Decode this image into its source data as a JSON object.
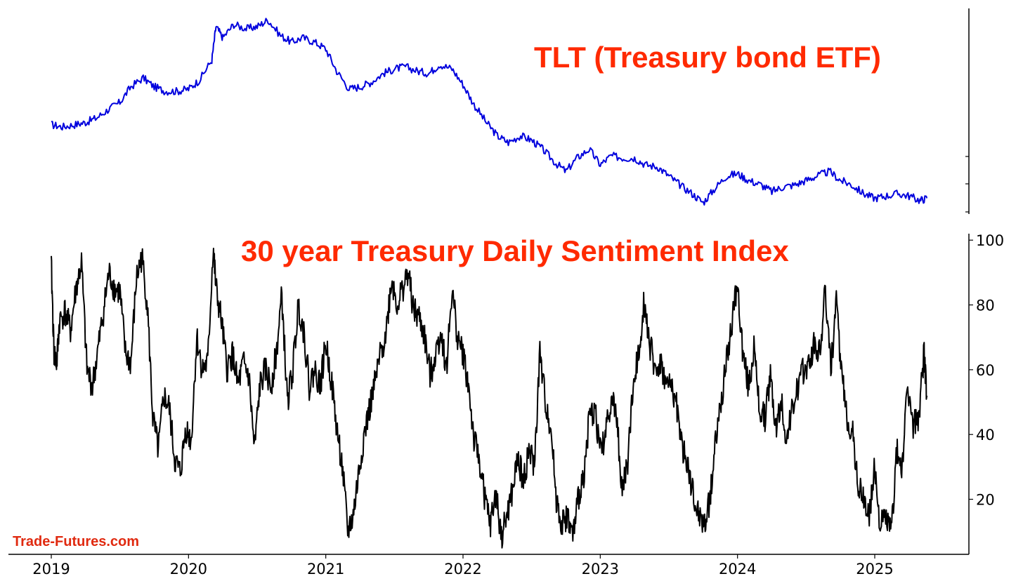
{
  "chart_data": [
    {
      "type": "line",
      "title": "TLT (Treasury bond ETF)",
      "y_axis_side": "right",
      "y_ticks_labeled": false,
      "color": "#0000dd",
      "series": [
        {
          "x": [
            2019.0,
            2019.08,
            2019.17,
            2019.25,
            2019.33,
            2019.42,
            2019.5,
            2019.58,
            2019.67,
            2019.75,
            2019.83,
            2019.92,
            2020.0,
            2020.08,
            2020.17,
            2020.2,
            2020.25,
            2020.33,
            2020.42,
            2020.5,
            2020.58,
            2020.67,
            2020.75,
            2020.83,
            2020.92,
            2021.0,
            2021.08,
            2021.17,
            2021.25,
            2021.33,
            2021.42,
            2021.5,
            2021.58,
            2021.67,
            2021.75,
            2021.83,
            2021.92,
            2022.0,
            2022.08,
            2022.17,
            2022.25,
            2022.33,
            2022.42,
            2022.5,
            2022.58,
            2022.67,
            2022.75,
            2022.83,
            2022.92,
            2023.0,
            2023.08,
            2023.17,
            2023.25,
            2023.33,
            2023.42,
            2023.5,
            2023.58,
            2023.67,
            2023.75,
            2023.83,
            2023.92,
            2024.0,
            2024.08,
            2024.17,
            2024.25,
            2024.33,
            2024.42,
            2024.5,
            2024.58,
            2024.67,
            2024.75,
            2024.83,
            2024.92,
            2025.0,
            2025.08,
            2025.17,
            2025.25,
            2025.33,
            2025.38
          ],
          "values": [
            121,
            120,
            121,
            122,
            124,
            128,
            131,
            138,
            142,
            138,
            136,
            136,
            137,
            141,
            150,
            165,
            160,
            166,
            164,
            165,
            168,
            161,
            158,
            160,
            158,
            155,
            145,
            137,
            138,
            140,
            144,
            146,
            147,
            145,
            144,
            148,
            146,
            139,
            130,
            122,
            116,
            113,
            116,
            114,
            110,
            104,
            100,
            106,
            110,
            103,
            107,
            106,
            106,
            103,
            102,
            98,
            94,
            90,
            86,
            92,
            98,
            99,
            96,
            94,
            91,
            93,
            94,
            96,
            98,
            100,
            96,
            94,
            90,
            88,
            89,
            90,
            89,
            87,
            88
          ]
        }
      ]
    },
    {
      "type": "line",
      "title": "30 year Treasury Daily Sentiment Index",
      "y_axis_side": "right",
      "ylim": [
        3,
        102
      ],
      "y_ticks": [
        "20",
        "40",
        "60",
        "80",
        "100"
      ],
      "x_ticks": [
        "2019",
        "2020",
        "2021",
        "2022",
        "2023",
        "2024",
        "2025"
      ],
      "color": "#000000",
      "series": [
        {
          "x": [
            2019.0,
            2019.02,
            2019.04,
            2019.06,
            2019.1,
            2019.14,
            2019.18,
            2019.22,
            2019.26,
            2019.3,
            2019.34,
            2019.38,
            2019.42,
            2019.46,
            2019.5,
            2019.54,
            2019.58,
            2019.62,
            2019.66,
            2019.7,
            2019.74,
            2019.78,
            2019.82,
            2019.86,
            2019.9,
            2019.94,
            2019.98,
            2020.02,
            2020.06,
            2020.1,
            2020.14,
            2020.18,
            2020.2,
            2020.24,
            2020.28,
            2020.32,
            2020.36,
            2020.4,
            2020.44,
            2020.48,
            2020.52,
            2020.56,
            2020.6,
            2020.64,
            2020.68,
            2020.72,
            2020.76,
            2020.8,
            2020.84,
            2020.88,
            2020.92,
            2020.96,
            2021.0,
            2021.04,
            2021.08,
            2021.12,
            2021.16,
            2021.2,
            2021.24,
            2021.28,
            2021.32,
            2021.36,
            2021.4,
            2021.44,
            2021.48,
            2021.52,
            2021.56,
            2021.6,
            2021.64,
            2021.68,
            2021.72,
            2021.76,
            2021.8,
            2021.84,
            2021.88,
            2021.92,
            2021.96,
            2022.0,
            2022.04,
            2022.08,
            2022.12,
            2022.16,
            2022.2,
            2022.24,
            2022.28,
            2022.32,
            2022.36,
            2022.4,
            2022.44,
            2022.48,
            2022.52,
            2022.56,
            2022.6,
            2022.64,
            2022.68,
            2022.72,
            2022.76,
            2022.8,
            2022.84,
            2022.88,
            2022.92,
            2022.96,
            2023.0,
            2023.04,
            2023.08,
            2023.12,
            2023.16,
            2023.2,
            2023.24,
            2023.28,
            2023.32,
            2023.36,
            2023.4,
            2023.44,
            2023.48,
            2023.52,
            2023.56,
            2023.6,
            2023.64,
            2023.68,
            2023.72,
            2023.76,
            2023.8,
            2023.84,
            2023.88,
            2023.92,
            2023.96,
            2024.0,
            2024.04,
            2024.08,
            2024.12,
            2024.16,
            2024.2,
            2024.24,
            2024.28,
            2024.32,
            2024.36,
            2024.4,
            2024.44,
            2024.48,
            2024.52,
            2024.56,
            2024.6,
            2024.64,
            2024.68,
            2024.72,
            2024.76,
            2024.8,
            2024.84,
            2024.88,
            2024.92,
            2024.96,
            2025.0,
            2025.04,
            2025.08,
            2025.12,
            2025.16,
            2025.2,
            2025.24,
            2025.28,
            2025.32,
            2025.36,
            2025.38
          ],
          "values": [
            92,
            65,
            62,
            75,
            78,
            72,
            85,
            93,
            60,
            55,
            66,
            78,
            90,
            85,
            84,
            65,
            62,
            88,
            95,
            80,
            45,
            35,
            52,
            48,
            32,
            28,
            42,
            38,
            70,
            60,
            62,
            98,
            85,
            75,
            60,
            65,
            55,
            62,
            58,
            35,
            55,
            60,
            55,
            65,
            83,
            50,
            60,
            80,
            72,
            55,
            60,
            55,
            68,
            57,
            42,
            30,
            10,
            15,
            28,
            40,
            48,
            56,
            65,
            72,
            88,
            80,
            85,
            90,
            78,
            76,
            70,
            58,
            65,
            72,
            60,
            85,
            70,
            65,
            55,
            38,
            32,
            20,
            12,
            22,
            8,
            15,
            22,
            33,
            25,
            35,
            30,
            65,
            50,
            42,
            20,
            12,
            15,
            8,
            20,
            28,
            45,
            48,
            35,
            40,
            52,
            45,
            22,
            32,
            55,
            65,
            82,
            68,
            60,
            62,
            55,
            55,
            48,
            35,
            30,
            20,
            15,
            12,
            20,
            38,
            50,
            62,
            75,
            86,
            65,
            55,
            66,
            48,
            45,
            58,
            42,
            50,
            38,
            48,
            55,
            60,
            62,
            68,
            65,
            85,
            60,
            80,
            58,
            45,
            40,
            24,
            20,
            15,
            30,
            12,
            15,
            10,
            35,
            30,
            55,
            42,
            46,
            65,
            52
          ]
        }
      ]
    }
  ],
  "watermark": "Trade-Futures.com"
}
